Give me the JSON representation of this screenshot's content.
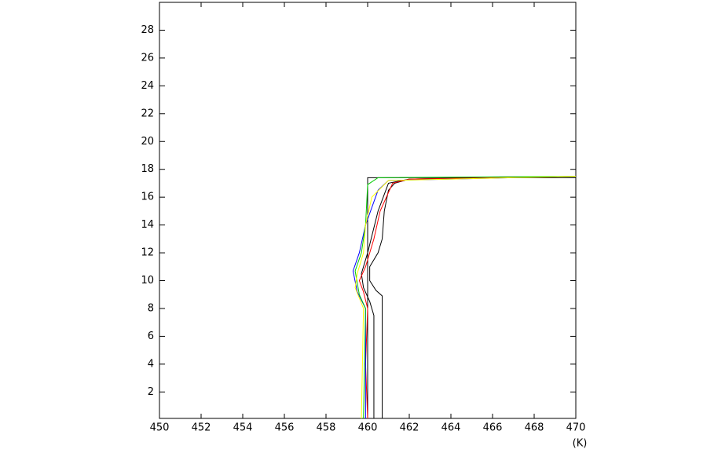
{
  "chart_data": {
    "type": "line",
    "x_label": "(K)",
    "xlim": [
      450,
      470
    ],
    "xticks": [
      450,
      452,
      454,
      456,
      458,
      460,
      462,
      464,
      466,
      468,
      470
    ],
    "ylim": [
      0.1,
      30
    ],
    "yticks": [
      2,
      4,
      6,
      8,
      10,
      12,
      14,
      16,
      18,
      20,
      22,
      24,
      26,
      28
    ],
    "series": [
      {
        "color": "#000000",
        "values": [
          460,
          460,
          470
        ],
        "y": [
          0.1,
          17.4,
          17.4
        ]
      },
      {
        "color": "#000000",
        "values": [
          460.7,
          460.7,
          460.4,
          460.1,
          460.1,
          460.5,
          460.7,
          460.8,
          461,
          461.3,
          462,
          466,
          470
        ],
        "y": [
          0.1,
          8.9,
          9.3,
          10,
          11,
          12,
          13,
          15,
          16.5,
          17,
          17.3,
          17.4,
          17.5
        ]
      },
      {
        "color": "#000000",
        "values": [
          460.3,
          460.3,
          460.1,
          459.8,
          459.7,
          460,
          460.5,
          461,
          462,
          470
        ],
        "y": [
          0.1,
          7.5,
          8.5,
          9.5,
          10.5,
          12,
          15,
          17,
          17.3,
          17.5
        ]
      },
      {
        "color": "#ff0000",
        "values": [
          460,
          459.9,
          460,
          459.8,
          459.6,
          459.9,
          460.3,
          460.6,
          461.2,
          462,
          470
        ],
        "y": [
          0.1,
          4,
          8,
          9.2,
          10,
          11,
          13,
          15,
          17,
          17.3,
          17.5
        ]
      },
      {
        "color": "#0000ff",
        "values": [
          459.9,
          459.9,
          459.5,
          459.3,
          459.6,
          459.9,
          460.5,
          461,
          470
        ],
        "y": [
          0.1,
          8,
          9.2,
          10.7,
          12,
          14,
          16.5,
          17.2,
          17.5
        ]
      },
      {
        "color": "#00cc00",
        "values": [
          459.8,
          459.9,
          459.6,
          459.4,
          459.7,
          459.9,
          460,
          460.5,
          470
        ],
        "y": [
          0.1,
          8,
          9,
          10.7,
          12,
          14,
          16.9,
          17.4,
          17.5
        ]
      },
      {
        "color": "#ffff00",
        "values": [
          459.7,
          459.8,
          459.4,
          459.5,
          459.8,
          459.9,
          460.2,
          461,
          470
        ],
        "y": [
          0.1,
          8,
          9.5,
          10.5,
          12,
          14,
          16,
          17.2,
          17.5
        ]
      }
    ]
  }
}
